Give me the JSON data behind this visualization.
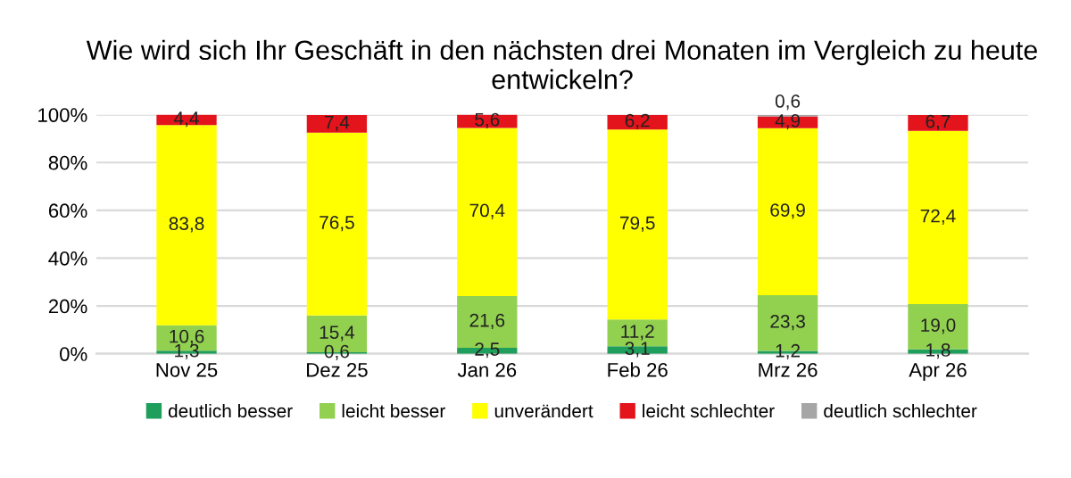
{
  "chart_data": {
    "type": "bar",
    "stacked": true,
    "title": "Wie wird sich Ihr Geschäft in den nächsten drei Monaten im Vergleich zu heute entwickeln?",
    "categories": [
      "Nov 25",
      "Dez 25",
      "Jan 26",
      "Feb 26",
      "Mrz 26",
      "Apr 26"
    ],
    "series": [
      {
        "name": "deutlich besser",
        "color": "#1f9e5c",
        "values": [
          1.3,
          0.6,
          2.5,
          3.1,
          1.2,
          1.8
        ],
        "value_labels": [
          "1,3",
          "0,6",
          "2,5",
          "3,1",
          "1,2",
          "1,8"
        ]
      },
      {
        "name": "leicht besser",
        "color": "#92d050",
        "values": [
          10.6,
          15.4,
          21.6,
          11.2,
          23.3,
          19.0
        ],
        "value_labels": [
          "10,6",
          "15,4",
          "21,6",
          "11,2",
          "23,3",
          "19,0"
        ]
      },
      {
        "name": "unverändert",
        "color": "#ffff00",
        "values": [
          83.8,
          76.5,
          70.4,
          79.5,
          69.9,
          72.4
        ],
        "value_labels": [
          "83,8",
          "76,5",
          "70,4",
          "79,5",
          "69,9",
          "72,4"
        ]
      },
      {
        "name": "leicht schlechter",
        "color": "#e3141b",
        "values": [
          4.4,
          7.4,
          5.6,
          6.2,
          4.9,
          6.7
        ],
        "value_labels": [
          "4,4",
          "7,4",
          "5,6",
          "6,2",
          "4,9",
          "6,7"
        ]
      },
      {
        "name": "deutlich schlechter",
        "color": "#a6a6a6",
        "values": [
          null,
          null,
          null,
          null,
          0.6,
          null
        ],
        "value_labels": [
          null,
          null,
          null,
          null,
          "0,6",
          null
        ]
      }
    ],
    "ylim": [
      0,
      100
    ],
    "yticks": [
      {
        "value": 0,
        "label": "0%"
      },
      {
        "value": 20,
        "label": "20%"
      },
      {
        "value": 40,
        "label": "40%"
      },
      {
        "value": 60,
        "label": "60%"
      },
      {
        "value": 80,
        "label": "80%"
      },
      {
        "value": 100,
        "label": "100%"
      }
    ],
    "grid": "y",
    "legend": "bottom"
  }
}
